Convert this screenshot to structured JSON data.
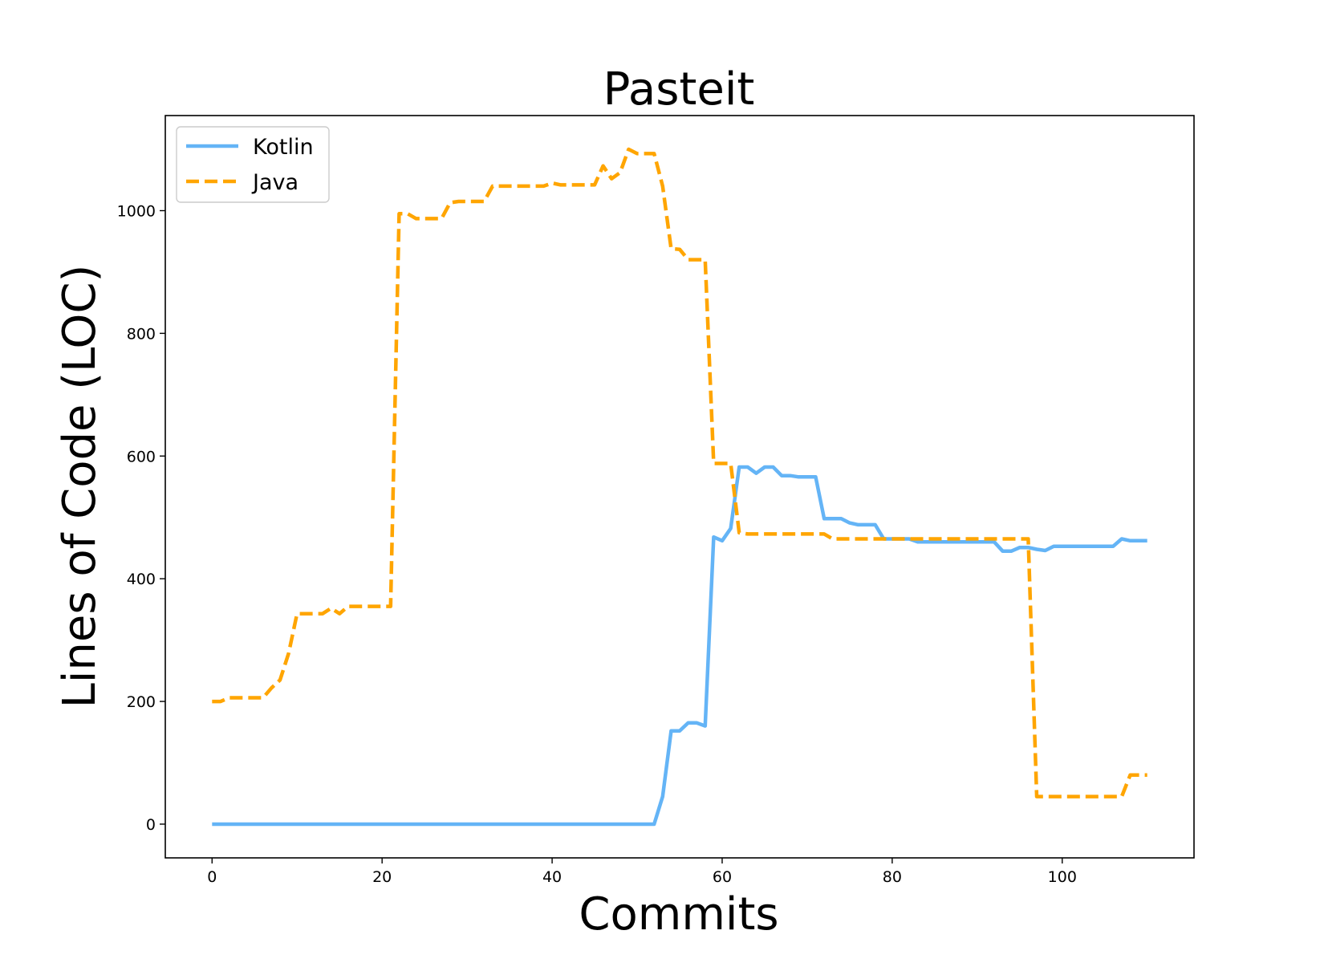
{
  "chart_data": {
    "type": "line",
    "title": "Pasteit",
    "xlabel": "Commits",
    "ylabel": "Lines of Code (LOC)",
    "xlim": [
      -5.5,
      115.5
    ],
    "ylim": [
      -55,
      1155
    ],
    "xticks": [
      0,
      20,
      40,
      60,
      80,
      100
    ],
    "yticks": [
      0,
      200,
      400,
      600,
      800,
      1000
    ],
    "legend_position": "top-left",
    "grid": false,
    "series": [
      {
        "name": "Kotlin",
        "color": "#64B4F6",
        "style": "solid",
        "points": [
          [
            0,
            0
          ],
          [
            52,
            0
          ],
          [
            53,
            45
          ],
          [
            54,
            152
          ],
          [
            55,
            152
          ],
          [
            56,
            165
          ],
          [
            57,
            165
          ],
          [
            58,
            160
          ],
          [
            59,
            468
          ],
          [
            60,
            462
          ],
          [
            61,
            482
          ],
          [
            62,
            582
          ],
          [
            63,
            582
          ],
          [
            64,
            572
          ],
          [
            65,
            582
          ],
          [
            66,
            582
          ],
          [
            67,
            568
          ],
          [
            68,
            568
          ],
          [
            69,
            566
          ],
          [
            70,
            566
          ],
          [
            71,
            566
          ],
          [
            72,
            498
          ],
          [
            73,
            498
          ],
          [
            74,
            498
          ],
          [
            75,
            491
          ],
          [
            76,
            488
          ],
          [
            77,
            488
          ],
          [
            78,
            488
          ],
          [
            79,
            465
          ],
          [
            80,
            465
          ],
          [
            81,
            465
          ],
          [
            82,
            465
          ],
          [
            83,
            460
          ],
          [
            84,
            460
          ],
          [
            90,
            460
          ],
          [
            91,
            460
          ],
          [
            92,
            460
          ],
          [
            93,
            445
          ],
          [
            94,
            445
          ],
          [
            95,
            451
          ],
          [
            96,
            451
          ],
          [
            97,
            448
          ],
          [
            98,
            446
          ],
          [
            99,
            453
          ],
          [
            100,
            453
          ],
          [
            106,
            453
          ],
          [
            107,
            465
          ],
          [
            108,
            462
          ],
          [
            110,
            462
          ]
        ]
      },
      {
        "name": "Java",
        "color": "#FFA500",
        "style": "dashed",
        "points": [
          [
            0,
            200
          ],
          [
            1,
            200
          ],
          [
            2,
            206
          ],
          [
            6,
            206
          ],
          [
            7,
            222
          ],
          [
            8,
            235
          ],
          [
            9,
            278
          ],
          [
            10,
            343
          ],
          [
            13,
            343
          ],
          [
            14,
            352
          ],
          [
            15,
            343
          ],
          [
            16,
            355
          ],
          [
            21,
            355
          ],
          [
            22,
            995
          ],
          [
            23,
            995
          ],
          [
            24,
            987
          ],
          [
            27,
            987
          ],
          [
            28,
            1013
          ],
          [
            29,
            1015
          ],
          [
            32,
            1015
          ],
          [
            33,
            1040
          ],
          [
            39,
            1040
          ],
          [
            40,
            1045
          ],
          [
            41,
            1042
          ],
          [
            45,
            1042
          ],
          [
            46,
            1073
          ],
          [
            47,
            1052
          ],
          [
            48,
            1062
          ],
          [
            49,
            1100
          ],
          [
            50,
            1093
          ],
          [
            52,
            1093
          ],
          [
            53,
            1040
          ],
          [
            54,
            938
          ],
          [
            55,
            937
          ],
          [
            56,
            920
          ],
          [
            58,
            920
          ],
          [
            59,
            588
          ],
          [
            61,
            588
          ],
          [
            62,
            475
          ],
          [
            63,
            473
          ],
          [
            72,
            473
          ],
          [
            73,
            465
          ],
          [
            96,
            465
          ],
          [
            97,
            45
          ],
          [
            106,
            45
          ],
          [
            107,
            45
          ],
          [
            108,
            80
          ],
          [
            110,
            80
          ]
        ]
      }
    ]
  }
}
